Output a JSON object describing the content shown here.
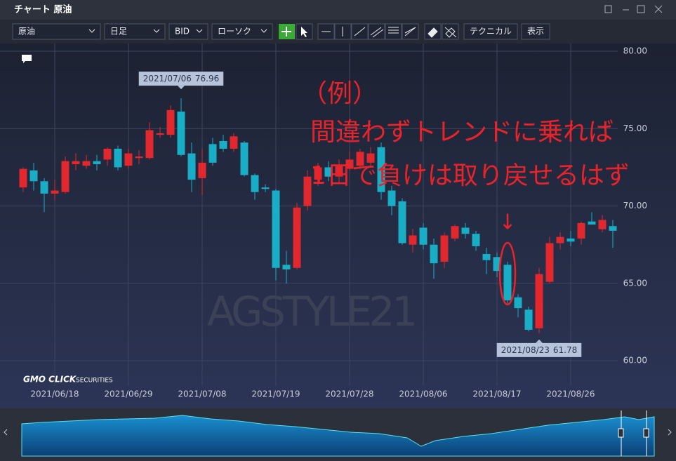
{
  "window": {
    "title": "チャート 原油"
  },
  "toolbar": {
    "symbol": "原油",
    "period": "日足",
    "side": "BID",
    "style": "ローソク",
    "buttons": [
      "テクニカル",
      "表示"
    ]
  },
  "chart_data": {
    "type": "candlestick",
    "categories": [
      null,
      null,
      null,
      "2021/06/18",
      null,
      null,
      null,
      null,
      null,
      null,
      "2021/06/29",
      null,
      null,
      null,
      null,
      null,
      null,
      "2021/07/08",
      null,
      null,
      null,
      null,
      null,
      null,
      "2021/07/19",
      null,
      null,
      null,
      null,
      null,
      null,
      "2021/07/28",
      null,
      null,
      null,
      null,
      null,
      null,
      "2021/08/06",
      null,
      null,
      null,
      null,
      null,
      null,
      "2021/08/17",
      null,
      null,
      null,
      null,
      null,
      null,
      "2021/08/26",
      null,
      null,
      null,
      null
    ],
    "open": [
      71.2,
      72.3,
      71.6,
      70.8,
      70.9,
      72.7,
      72.6,
      72.9,
      73.0,
      73.7,
      72.6,
      73.1,
      73.1,
      74.6,
      74.6,
      76.1,
      73.4,
      71.8,
      74.0,
      74.2,
      73.7,
      74.1,
      72.0,
      71.2,
      71.0,
      66.2,
      66.0,
      70.0,
      71.7,
      72.5,
      71.9,
      72.4,
      72.6,
      72.8,
      73.8,
      71.0,
      70.3,
      67.5,
      68.6,
      67.5,
      66.4,
      67.9,
      68.6,
      68.2,
      66.9,
      66.7,
      66.2,
      64.1,
      63.3,
      62.1,
      65.1,
      67.6,
      67.9,
      67.9,
      69.0,
      68.5,
      68.7
    ],
    "high": [
      72.5,
      72.8,
      71.8,
      71.7,
      73.2,
      73.4,
      73.3,
      73.3,
      73.8,
      73.9,
      73.7,
      73.6,
      75.4,
      75.1,
      76.5,
      76.96,
      74.1,
      73.7,
      74.4,
      74.6,
      74.7,
      74.2,
      72.1,
      71.4,
      71.1,
      67.1,
      70.2,
      72.3,
      72.8,
      72.9,
      73.0,
      73.5,
      73.7,
      73.8,
      74.1,
      71.3,
      70.5,
      68.5,
      68.9,
      67.9,
      68.3,
      68.8,
      68.9,
      68.4,
      67.3,
      67.0,
      66.4,
      64.3,
      63.5,
      66.0,
      68.0,
      68.3,
      68.4,
      69.0,
      69.6,
      69.4,
      69.1
    ],
    "low": [
      70.9,
      71.0,
      69.6,
      70.4,
      70.8,
      72.3,
      72.4,
      72.3,
      72.6,
      72.3,
      72.4,
      72.7,
      73.0,
      74.4,
      74.4,
      73.2,
      70.9,
      70.7,
      72.6,
      73.5,
      73.5,
      71.9,
      70.4,
      70.9,
      65.2,
      65.0,
      65.9,
      69.7,
      71.3,
      71.6,
      71.5,
      72.3,
      72.4,
      72.5,
      70.4,
      69.4,
      67.5,
      67.0,
      67.2,
      65.3,
      66.0,
      67.7,
      67.9,
      67.1,
      65.6,
      65.4,
      63.7,
      62.8,
      61.9,
      61.78,
      65.0,
      67.2,
      67.4,
      67.5,
      68.8,
      68.3,
      67.3
    ],
    "close": [
      72.4,
      71.6,
      70.8,
      71.0,
      72.9,
      72.9,
      72.9,
      72.7,
      73.7,
      72.5,
      73.4,
      73.2,
      74.9,
      74.7,
      76.2,
      73.3,
      71.7,
      72.8,
      72.8,
      73.7,
      74.5,
      72.0,
      70.9,
      71.1,
      66.0,
      65.9,
      69.9,
      71.9,
      72.5,
      71.9,
      72.6,
      73.0,
      73.5,
      73.4,
      70.9,
      70.0,
      67.6,
      68.1,
      67.5,
      66.3,
      68.1,
      68.7,
      68.2,
      67.4,
      66.5,
      65.8,
      63.9,
      63.4,
      62.0,
      65.6,
      67.6,
      68.0,
      67.7,
      68.9,
      68.8,
      69.1,
      68.4
    ],
    "up_color": "#e0282e",
    "down_color": "#19adc6",
    "ylim": [
      58.6,
      80.5
    ],
    "yticks": [
      {
        "value": 60,
        "label": "60.00"
      },
      {
        "value": 65,
        "label": "65.00"
      },
      {
        "value": 70,
        "label": "70.00"
      },
      {
        "value": 75,
        "label": "75.00"
      },
      {
        "value": 80,
        "label": "80.00"
      }
    ],
    "grid": true,
    "annotations": [
      {
        "date": "2021/07/06",
        "value": 76.96
      },
      {
        "date": "2021/08/23",
        "value": 61.78
      }
    ]
  },
  "overlay": {
    "lines": [
      "（例）",
      "間違わずトレンドに乗れば",
      "1日で負けは取り戻せるはず"
    ],
    "arrow": "↓"
  },
  "watermark": "AGSTYLE21",
  "logo": {
    "brand": "GMO CLICK",
    "sub": "SECURITIES"
  }
}
